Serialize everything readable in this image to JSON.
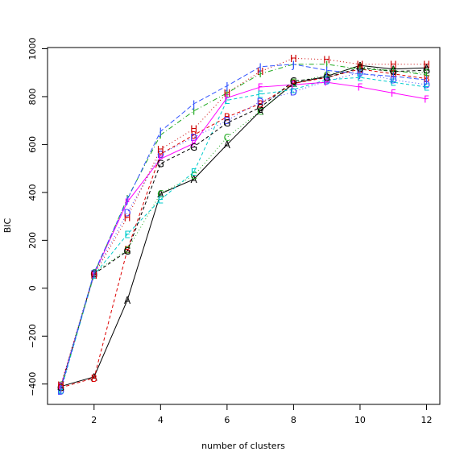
{
  "chart_data": {
    "type": "line",
    "title": "",
    "xlabel": "number of clusters",
    "ylabel": "BIC",
    "xlim": [
      0.6,
      12.4
    ],
    "ylim": [
      -485,
      1005
    ],
    "xticks": [
      2,
      4,
      6,
      8,
      10,
      12
    ],
    "yticks": [
      -400,
      -200,
      0,
      200,
      400,
      600,
      800,
      1000
    ],
    "grid": false,
    "x": [
      1,
      2,
      3,
      4,
      5,
      6,
      7,
      8,
      9,
      10,
      11,
      12
    ],
    "series": [
      {
        "name": "A",
        "color": "#000000",
        "dash": "",
        "values": [
          -410,
          -370,
          -50,
          395,
          455,
          600,
          740,
          855,
          885,
          930,
          915,
          920
        ]
      },
      {
        "name": "B",
        "color": "#dd0000",
        "dash": "4,3",
        "values": [
          -415,
          -375,
          160,
          560,
          640,
          715,
          770,
          855,
          880,
          915,
          895,
          875
        ]
      },
      {
        "name": "C",
        "color": "#22aa22",
        "dash": "1,3",
        "values": [
          -405,
          65,
          160,
          395,
          470,
          630,
          740,
          860,
          890,
          925,
          905,
          900
        ]
      },
      {
        "name": "D",
        "color": "#4444ff",
        "dash": "1,3",
        "values": [
          -430,
          60,
          315,
          560,
          630,
          700,
          780,
          820,
          865,
          900,
          870,
          850
        ]
      },
      {
        "name": "E",
        "color": "#00cccc",
        "dash": "4,3",
        "values": [
          -425,
          55,
          225,
          370,
          485,
          785,
          810,
          830,
          870,
          880,
          860,
          840
        ]
      },
      {
        "name": "F",
        "color": "#ff00ff",
        "dash": "",
        "values": [
          -410,
          60,
          360,
          540,
          605,
          795,
          840,
          850,
          860,
          840,
          815,
          790
        ]
      },
      {
        "name": "G",
        "color": "#000000",
        "dash": "4,3",
        "values": [
          -415,
          60,
          155,
          520,
          590,
          690,
          755,
          865,
          880,
          920,
          905,
          910
        ]
      },
      {
        "name": "H",
        "color": "#cc0000",
        "dash": "1,3",
        "values": [
          -405,
          55,
          295,
          580,
          665,
          815,
          905,
          960,
          955,
          935,
          935,
          935
        ]
      },
      {
        "name": "I",
        "color": "#22aa22",
        "dash": "6,3,1,3",
        "values": [
          -415,
          60,
          375,
          640,
          740,
          815,
          895,
          935,
          935,
          915,
          910,
          890
        ]
      },
      {
        "name": "J",
        "color": "#3355ff",
        "dash": "6,3",
        "values": [
          -420,
          65,
          370,
          655,
          770,
          845,
          925,
          935,
          910,
          895,
          885,
          870
        ]
      }
    ]
  }
}
